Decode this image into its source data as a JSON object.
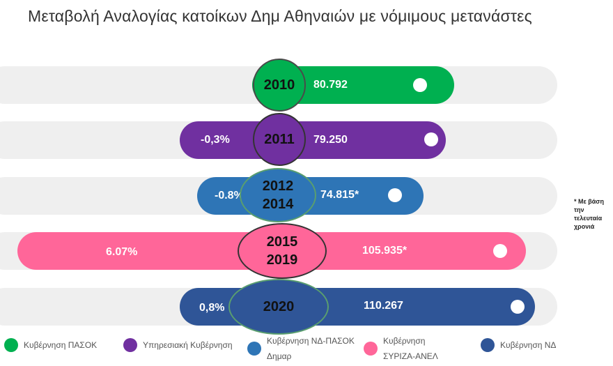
{
  "title": "Μεταβολή Αναλογίας κατοίκων Δημ Αθηναιών με νόμιμους μετανάστες",
  "rows": [
    {
      "year_lines": [
        "2010"
      ],
      "change": "",
      "value": "80.792",
      "color": "#00b050"
    },
    {
      "year_lines": [
        "2011"
      ],
      "change": "-0,3%",
      "value": "79.250",
      "color": "#7030a0"
    },
    {
      "year_lines": [
        "2012",
        "2014"
      ],
      "change": "-0.8%",
      "value": "74.815*",
      "color": "#2e75b6"
    },
    {
      "year_lines": [
        "2015",
        "2019"
      ],
      "change": "6.07%",
      "value": "105.935*",
      "color": "#ff6699"
    },
    {
      "year_lines": [
        "2020"
      ],
      "change": "0,8%",
      "value": "110.267",
      "color": "#2f5597"
    }
  ],
  "note": "* Με βάση την τελευταία χρονιά",
  "legend": [
    {
      "label": "Κυβέρνηση ΠΑΣΟΚ",
      "color": "#00b050"
    },
    {
      "label": "Υπηρεσιακή Κυβέρνηση",
      "color": "#7030a0"
    },
    {
      "label": "Κυβέρνηση ΝΔ-ΠΑΣΟΚ Δημαρ",
      "color": "#2e75b6"
    },
    {
      "label": "Κυβέρνηση ΣΥΡΙΖΑ-ΑΝΕΛ",
      "color": "#ff6699"
    },
    {
      "label": "Κυβέρνηση ΝΔ",
      "color": "#2f5597"
    }
  ]
}
